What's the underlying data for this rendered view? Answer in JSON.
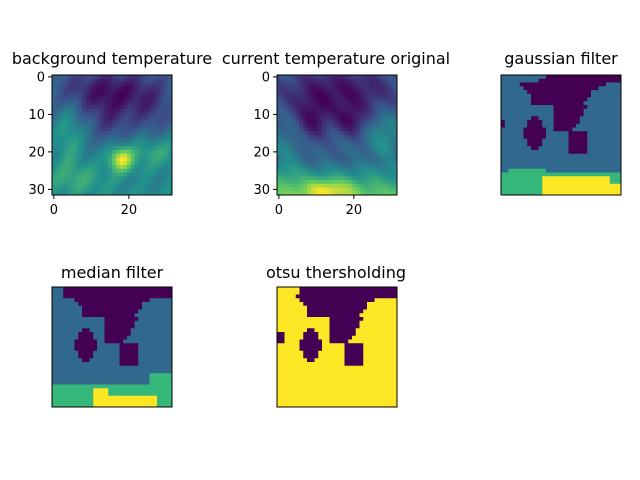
{
  "palette": {
    "viridis_stops": [
      "#440154",
      "#3b528b",
      "#21918c",
      "#5ec962",
      "#fde725"
    ],
    "labels_4": [
      "#440154",
      "#31688e",
      "#35b779",
      "#fde725"
    ],
    "otsu_2": [
      "#440154",
      "#fde725"
    ]
  },
  "chart_data": [
    {
      "type": "heatmap",
      "title": "background temperature",
      "xlim": [
        0,
        31
      ],
      "ylim": [
        31,
        0
      ],
      "xticks": [
        "0",
        "20"
      ],
      "yticks": [
        "0",
        "10",
        "20",
        "30"
      ],
      "colormap": "viridis",
      "note": "smooth temperature field, bright blob near x≈18,y≈22"
    },
    {
      "type": "heatmap",
      "title": "current temperature original",
      "xlim": [
        0,
        31
      ],
      "ylim": [
        31,
        0
      ],
      "xticks": [
        "0",
        "20"
      ],
      "yticks": [
        "0",
        "10",
        "20",
        "30"
      ],
      "colormap": "viridis",
      "note": "smooth temperature field, bright band along bottom rows"
    },
    {
      "type": "heatmap",
      "title": "gaussian filter",
      "axes": "off",
      "levels": 4,
      "colormap": "viridis"
    },
    {
      "type": "heatmap",
      "title": "median filter",
      "axes": "off",
      "levels": 4,
      "colormap": "viridis"
    },
    {
      "type": "heatmap",
      "title": "otsu thersholding",
      "axes": "off",
      "levels": 2,
      "colormap": "viridis"
    }
  ]
}
